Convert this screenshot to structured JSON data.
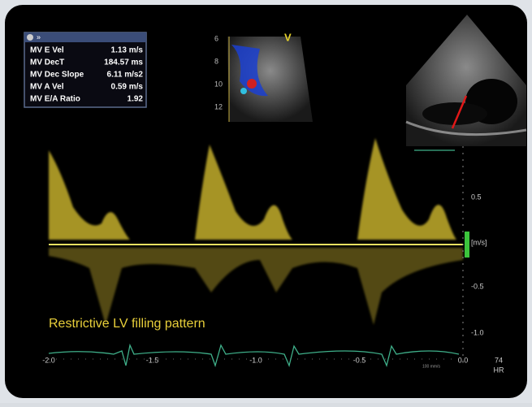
{
  "measurements": {
    "header": "»",
    "rows": [
      [
        "MV E Vel",
        "1.13 m/s"
      ],
      [
        "MV DecT",
        "184.57 ms"
      ],
      [
        "MV Dec Slope",
        "6.11 m/s2"
      ],
      [
        "MV A Vel",
        "0.59 m/s"
      ],
      [
        "MV E/A Ratio",
        "1.92"
      ]
    ]
  },
  "color_inset": {
    "marker": "V",
    "depth_labels": [
      "6",
      "8",
      "10",
      "12"
    ]
  },
  "doppler": {
    "velocity_labels": [
      "0.5",
      "[m/s]",
      "-0.5",
      "-1.0"
    ],
    "time_labels": [
      "-2.0",
      "-1.5",
      "-1.0",
      "-0.5",
      "0.0"
    ],
    "sweep": "100 mm/s",
    "heart_rate": "74",
    "heart_rate_label": "HR"
  },
  "caption": "Restrictive LV filling pattern"
}
